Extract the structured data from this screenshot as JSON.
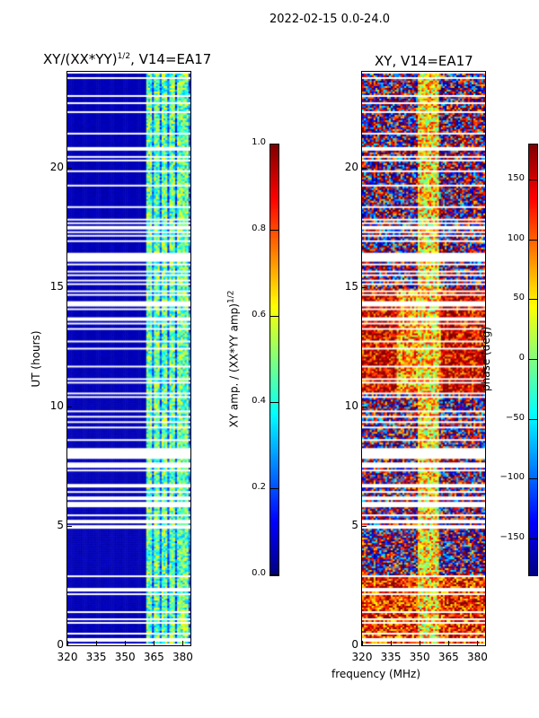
{
  "suptitle": "2022-02-15 0.0-24.0",
  "chart_data": [
    {
      "type": "heatmap",
      "title": "XY/(XX*YY)",
      "title_sup": "1/2",
      "title_suffix": ", V14=EA17",
      "xlabel": "",
      "ylabel": "UT (hours)",
      "xlim": [
        320,
        384
      ],
      "ylim": [
        0,
        24
      ],
      "xticks": [
        "320",
        "335",
        "350",
        "365",
        "380"
      ],
      "xtick_values": [
        320,
        335,
        350,
        365,
        380
      ],
      "yticks": [
        "0",
        "5",
        "10",
        "15",
        "20"
      ],
      "ytick_values": [
        0,
        5,
        10,
        15,
        20
      ],
      "colorbar": {
        "label": "XY amp. / (XX*YY amp)",
        "label_sup": "1/2",
        "range": [
          0,
          1
        ],
        "ticks": [
          "0.0",
          "0.2",
          "0.4",
          "0.6",
          "0.8",
          "1.0"
        ],
        "tick_values": [
          0,
          0.2,
          0.4,
          0.6,
          0.8,
          1.0
        ],
        "colormap": "jet"
      }
    },
    {
      "type": "heatmap",
      "title": "XY, V14=EA17",
      "xlabel": "frequency (MHz)",
      "ylabel": "",
      "xlim": [
        320,
        384
      ],
      "ylim": [
        0,
        24
      ],
      "xticks": [
        "320",
        "335",
        "350",
        "365",
        "380"
      ],
      "xtick_values": [
        320,
        335,
        350,
        365,
        380
      ],
      "yticks": [
        "0",
        "5",
        "10",
        "15",
        "20"
      ],
      "ytick_values": [
        0,
        5,
        10,
        15,
        20
      ],
      "colorbar": {
        "label": "phase (deg)",
        "range": [
          -180,
          180
        ],
        "ticks": [
          "−150",
          "−100",
          "−50",
          "0",
          "50",
          "100",
          "150"
        ],
        "tick_values": [
          -150,
          -100,
          -50,
          0,
          50,
          100,
          150
        ],
        "colormap": "jet"
      }
    }
  ]
}
